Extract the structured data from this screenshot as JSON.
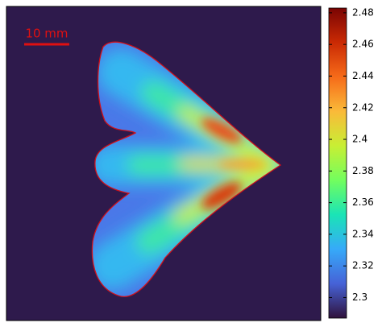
{
  "chart_data": {
    "type": "heatmap",
    "scale_bar_label": "10 mm",
    "colorbar": {
      "clim": [
        2.287,
        2.483
      ],
      "ticks": [
        2.3,
        2.32,
        2.34,
        2.36,
        2.38,
        2.4,
        2.42,
        2.44,
        2.46,
        2.48
      ],
      "colormap": [
        "#30123b",
        "#4662d7",
        "#36aaf9",
        "#1ae4b6",
        "#72fe5e",
        "#c8ef34",
        "#faba39",
        "#f66b19",
        "#ca2a04",
        "#7a0403"
      ]
    },
    "background_color": "#2e1a4c",
    "contour_color": "#d0101a"
  }
}
